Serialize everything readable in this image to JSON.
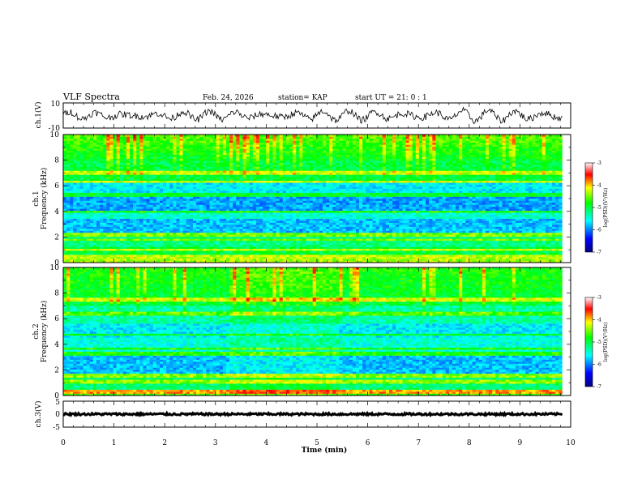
{
  "header": {
    "title": "VLF Spectra",
    "date": "Feb. 24, 2026",
    "station": "station= KAP",
    "start": "start  UT  =   21: 0  : 1"
  },
  "colorbar": {
    "label": "log(PSD)(V²/Hz)",
    "ticks": [
      "-3",
      "-4",
      "-5",
      "-6",
      "-7"
    ],
    "range": [
      -7,
      -3
    ]
  },
  "chart_data": [
    {
      "type": "line",
      "name": "ch1-waveform",
      "ylabel": "ch.1(V)",
      "ylim": [
        -10,
        10
      ],
      "yticks": [
        "10",
        "-10"
      ],
      "xlim": [
        0,
        10
      ],
      "series": [
        {
          "name": "ch.1",
          "description_range": [
            -6,
            6
          ]
        }
      ]
    },
    {
      "type": "heatmap",
      "name": "ch1-spectrogram",
      "ylabel": "ch.1",
      "ylabel2": "Frequency (kHz)",
      "ylim": [
        0,
        10
      ],
      "yticks": [
        "0",
        "2",
        "4",
        "6",
        "8",
        "10"
      ],
      "xlim": [
        0,
        10
      ],
      "zlim": [
        -7,
        -3
      ]
    },
    {
      "type": "heatmap",
      "name": "ch2-spectrogram",
      "ylabel": "ch.2",
      "ylabel2": "Frequency (kHz)",
      "ylim": [
        0,
        10
      ],
      "yticks": [
        "0",
        "2",
        "4",
        "6",
        "8",
        "10"
      ],
      "xlim": [
        0,
        10
      ],
      "zlim": [
        -7,
        -3
      ]
    },
    {
      "type": "line",
      "name": "ch3-waveform",
      "ylabel": "ch.3(V)",
      "ylim": [
        -5,
        5
      ],
      "yticks": [
        "5",
        "0",
        "-5"
      ],
      "xlim": [
        0,
        10
      ],
      "series": [
        {
          "name": "ch.3",
          "description_range": [
            -0.4,
            0.4
          ]
        }
      ]
    }
  ],
  "xaxis": {
    "label": "Time  (min)",
    "ticks": [
      "0",
      "1",
      "2",
      "3",
      "4",
      "5",
      "6",
      "7",
      "8",
      "9",
      "10"
    ],
    "range": [
      0,
      10
    ],
    "data_end": 9.83
  }
}
